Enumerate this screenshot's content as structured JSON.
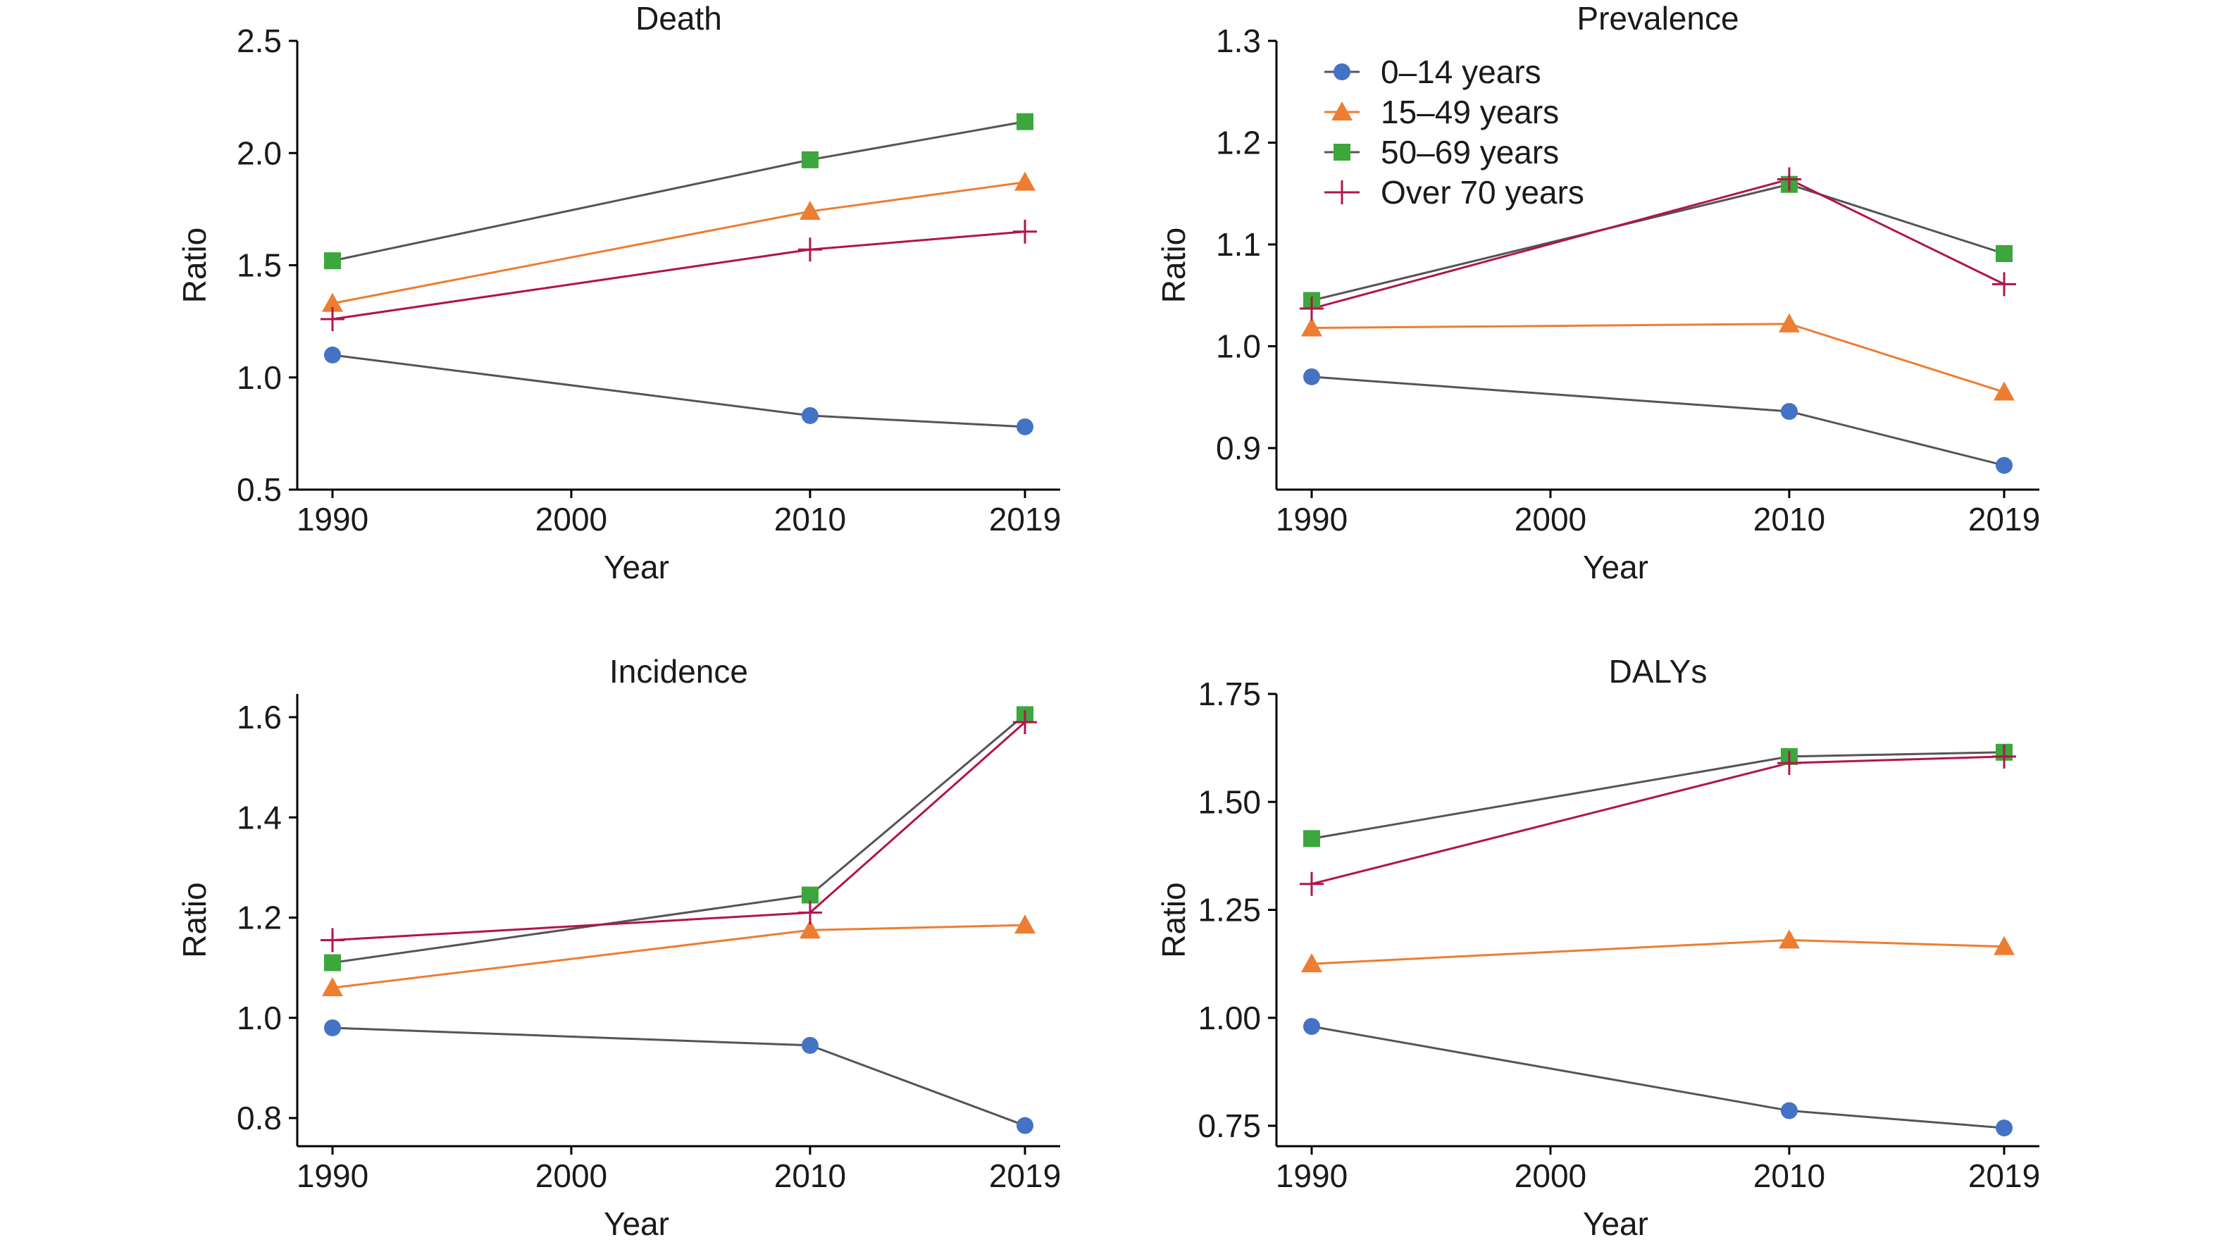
{
  "chart_data": [
    {
      "type": "line",
      "title": "Death",
      "xlabel": "Year",
      "ylabel": "Ratio",
      "x": [
        1990,
        2010,
        2019
      ],
      "xticks": [
        "1990",
        "2000",
        "2010",
        "2019"
      ],
      "xlim": [
        1990,
        2019
      ],
      "ylim": [
        0.5,
        2.5
      ],
      "yticks": [
        "0.5",
        "1.0",
        "1.5",
        "2.0",
        "2.5"
      ],
      "series": [
        {
          "name": "0–14 years",
          "values": [
            1.1,
            0.83,
            0.78
          ]
        },
        {
          "name": "15–49 years",
          "values": [
            1.33,
            1.74,
            1.87
          ]
        },
        {
          "name": "50–69  years",
          "values": [
            1.52,
            1.97,
            2.14
          ]
        },
        {
          "name": "Over 70 years",
          "values": [
            1.26,
            1.57,
            1.65
          ]
        }
      ]
    },
    {
      "type": "line",
      "title": "Prevalence",
      "xlabel": "Year",
      "ylabel": "Ratio",
      "x": [
        1990,
        2010,
        2019
      ],
      "xticks": [
        "1990",
        "2000",
        "2010",
        "2019"
      ],
      "xlim": [
        1990,
        2019
      ],
      "ylim": [
        0.86,
        1.3
      ],
      "yticks": [
        "0.9",
        "1.0",
        "1.1",
        "1.2",
        "1.3"
      ],
      "legend_position": "top-left",
      "series": [
        {
          "name": "0–14 years",
          "values": [
            0.97,
            0.936,
            0.883
          ]
        },
        {
          "name": "15–49 years",
          "values": [
            1.018,
            1.022,
            0.955
          ]
        },
        {
          "name": "50–69  years",
          "values": [
            1.045,
            1.159,
            1.091
          ]
        },
        {
          "name": "Over 70 years",
          "values": [
            1.037,
            1.164,
            1.061
          ]
        }
      ]
    },
    {
      "type": "line",
      "title": "Incidence",
      "xlabel": "Year",
      "ylabel": "Ratio",
      "x": [
        1990,
        2010,
        2019
      ],
      "xticks": [
        "1990",
        "2000",
        "2010",
        "2019"
      ],
      "xlim": [
        1990,
        2019
      ],
      "ylim": [
        0.74,
        1.65
      ],
      "yticks": [
        "0.8",
        "1.0",
        "1.2",
        "1.4",
        "1.6"
      ],
      "series": [
        {
          "name": "0–14 years",
          "values": [
            0.98,
            0.945,
            0.785
          ]
        },
        {
          "name": "15–49 years",
          "values": [
            1.06,
            1.175,
            1.185
          ]
        },
        {
          "name": "50–69  years",
          "values": [
            1.11,
            1.245,
            1.605
          ]
        },
        {
          "name": "Over 70 years",
          "values": [
            1.155,
            1.21,
            1.59
          ]
        }
      ]
    },
    {
      "type": "line",
      "title": "DALYs",
      "xlabel": "Year",
      "ylabel": "Ratio",
      "x": [
        1990,
        2010,
        2019
      ],
      "xticks": [
        "1990",
        "2000",
        "2010",
        "2019"
      ],
      "xlim": [
        1990,
        2019
      ],
      "ylim": [
        0.72,
        1.75
      ],
      "yticks": [
        "0.75",
        "1.00",
        "1.25",
        "1.50",
        "1.75"
      ],
      "series": [
        {
          "name": "0–14 years",
          "values": [
            0.98,
            0.785,
            0.745
          ]
        },
        {
          "name": "15–49 years",
          "values": [
            1.125,
            1.18,
            1.165
          ]
        },
        {
          "name": "50–69  years",
          "values": [
            1.415,
            1.605,
            1.615
          ]
        },
        {
          "name": "Over 70 years",
          "values": [
            1.31,
            1.59,
            1.605
          ]
        }
      ]
    }
  ],
  "legend": {
    "position": "top-left of Prevalence panel",
    "entries": [
      {
        "name": "0–14 years",
        "marker": "circle",
        "color": "#4472C4",
        "line_color": "#555555"
      },
      {
        "name": "15–49 years",
        "marker": "triangle",
        "color": "#ED7D31",
        "line_color": "#ED7D31"
      },
      {
        "name": "50–69  years",
        "marker": "square",
        "color": "#3CA73C",
        "line_color": "#555555"
      },
      {
        "name": "Over 70 years",
        "marker": "plus",
        "color": "#B0154C",
        "line_color": "#B0154C"
      }
    ]
  }
}
